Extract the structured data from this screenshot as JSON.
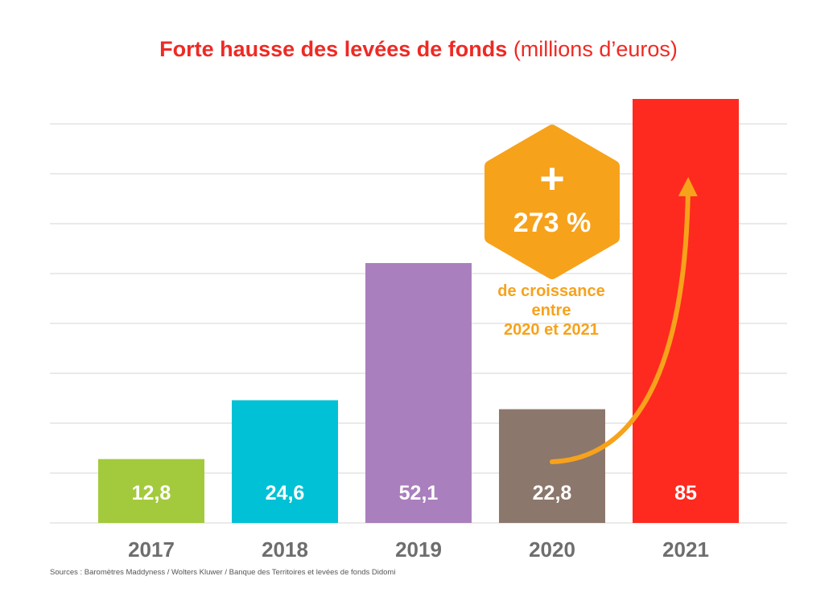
{
  "chart_data": {
    "type": "bar",
    "title": "Forte hausse des levées de fonds",
    "subtitle": "(millions d’euros)",
    "categories": [
      "2017",
      "2018",
      "2019",
      "2020",
      "2021"
    ],
    "values": [
      12.8,
      24.6,
      52.1,
      22.8,
      85
    ],
    "value_labels": [
      "12,8",
      "24,6",
      "52,1",
      "22,8",
      "85"
    ],
    "colors": [
      "#a3ca3c",
      "#00c1d5",
      "#aa7fbd",
      "#8c776d",
      "#fe2a1f"
    ],
    "ylim": [
      0,
      80
    ],
    "grid": true,
    "annotation": {
      "badge_symbol": "+",
      "badge_value": "273 %",
      "text_lines": [
        "de croissance",
        "entre",
        "2020 et 2021"
      ],
      "color": "#f7a21b"
    }
  },
  "source": "Sources : Baromètres Maddyness / Wolters Kluwer / Banque des Territoires et levées de fonds Didomi"
}
